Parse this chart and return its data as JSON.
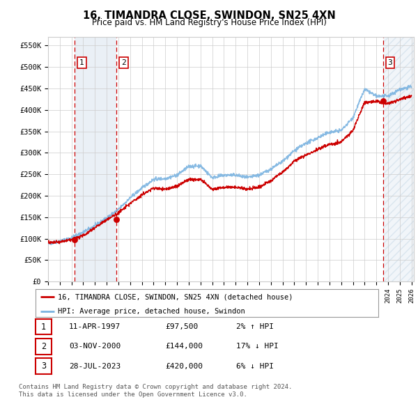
{
  "title": "16, TIMANDRA CLOSE, SWINDON, SN25 4XN",
  "subtitle": "Price paid vs. HM Land Registry's House Price Index (HPI)",
  "ylabel_ticks": [
    "£0",
    "£50K",
    "£100K",
    "£150K",
    "£200K",
    "£250K",
    "£300K",
    "£350K",
    "£400K",
    "£450K",
    "£500K",
    "£550K"
  ],
  "ytick_values": [
    0,
    50000,
    100000,
    150000,
    200000,
    250000,
    300000,
    350000,
    400000,
    450000,
    500000,
    550000
  ],
  "ylim": [
    0,
    570000
  ],
  "xlim_start": 1995.0,
  "xlim_end": 2026.2,
  "purchases": [
    {
      "index": 1,
      "date": "11-APR-1997",
      "price": 97500,
      "year": 1997.28,
      "hpi_pct": "2% ↑ HPI"
    },
    {
      "index": 2,
      "date": "03-NOV-2000",
      "price": 144000,
      "year": 2000.84,
      "hpi_pct": "17% ↓ HPI"
    },
    {
      "index": 3,
      "date": "28-JUL-2023",
      "price": 420000,
      "year": 2023.57,
      "hpi_pct": "6% ↓ HPI"
    }
  ],
  "legend_line1": "16, TIMANDRA CLOSE, SWINDON, SN25 4XN (detached house)",
  "legend_line2": "HPI: Average price, detached house, Swindon",
  "footnote1": "Contains HM Land Registry data © Crown copyright and database right 2024.",
  "footnote2": "This data is licensed under the Open Government Licence v3.0.",
  "hpi_color": "#7ab3e0",
  "price_color": "#cc0000",
  "vline_color": "#cc0000",
  "shade_color": "#dce6f1",
  "grid_color": "#cccccc",
  "background_color": "#ffffff",
  "label_box_color": "#cc0000"
}
